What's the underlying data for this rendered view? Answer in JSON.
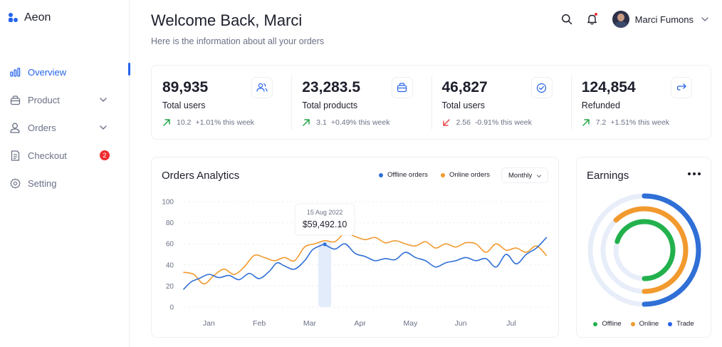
{
  "app": {
    "name": "Aeon"
  },
  "sidebar": {
    "items": [
      {
        "label": "Overview",
        "icon": "chart-bars-icon",
        "active": true
      },
      {
        "label": "Product",
        "icon": "box-icon",
        "chevron": true
      },
      {
        "label": "Orders",
        "icon": "user-icon",
        "chevron": true
      },
      {
        "label": "Checkout",
        "icon": "receipt-icon",
        "badge": "2"
      },
      {
        "label": "Setting",
        "icon": "gear-icon"
      }
    ]
  },
  "header": {
    "title": "Welcome Back, Marci",
    "subtitle": "Here is the information about all your orders",
    "user_name": "Marci Fumons"
  },
  "stats": [
    {
      "value": "89,935",
      "label": "Total users",
      "trend_num": "10.2",
      "trend_text": "+1.01% this week",
      "direction": "up",
      "icon": "users-icon"
    },
    {
      "value": "23,283.5",
      "label": "Total products",
      "trend_num": "3.1",
      "trend_text": "+0.49% this week",
      "direction": "up",
      "icon": "bag-icon"
    },
    {
      "value": "46,827",
      "label": "Total users",
      "trend_num": "2.56",
      "trend_text": "-0.91% this week",
      "direction": "down",
      "icon": "check-circle-icon"
    },
    {
      "value": "124,854",
      "label": "Refunded",
      "trend_num": "7.2",
      "trend_text": "+1.51% this week",
      "direction": "up",
      "icon": "refund-icon"
    }
  ],
  "colors": {
    "accent": "#2563eb",
    "offline": "#2f6fd6",
    "online": "#f29a2e",
    "trade_ring": "#2563eb",
    "up": "#22a447",
    "down": "#e5484d",
    "badge": "#ef2f2f"
  },
  "analytics": {
    "title": "Orders Analytics",
    "legend_offline": "Offline orders",
    "legend_online": "Online orders",
    "period": "Monthly",
    "tooltip_date": "15 Aug 2022",
    "tooltip_value": "$59,492.10"
  },
  "chart_data": {
    "type": "line",
    "ylim": [
      0,
      100
    ],
    "yticks": [
      "0",
      "20",
      "40",
      "60",
      "80",
      "100"
    ],
    "months": [
      "Jan",
      "Feb",
      "Mar",
      "Apr",
      "May",
      "Jun",
      "Jul"
    ],
    "month_x": [
      0.5,
      1.5,
      2.5,
      3.5,
      4.5,
      5.5,
      6.5
    ],
    "xlim": [
      0,
      7.25
    ],
    "highlight_x": 2.8,
    "series": [
      {
        "name": "Offline orders",
        "color": "#2f6fd6",
        "x": [
          0,
          0.15,
          0.3,
          0.5,
          0.7,
          0.9,
          1.1,
          1.3,
          1.5,
          1.7,
          1.85,
          2.0,
          2.2,
          2.4,
          2.55,
          2.7,
          2.8,
          3.0,
          3.2,
          3.4,
          3.6,
          3.8,
          4.0,
          4.2,
          4.4,
          4.6,
          4.8,
          5.0,
          5.2,
          5.4,
          5.6,
          5.8,
          6.0,
          6.2,
          6.4,
          6.6,
          6.8,
          7.0,
          7.2
        ],
        "y": [
          17,
          24,
          27,
          31,
          28,
          30,
          26,
          32,
          27,
          34,
          42,
          39,
          36,
          44,
          54,
          58,
          59,
          55,
          60,
          51,
          48,
          44,
          46,
          45,
          52,
          47,
          44,
          38,
          42,
          44,
          47,
          44,
          46,
          38,
          50,
          41,
          50,
          56,
          66
        ]
      },
      {
        "name": "Online orders",
        "color": "#f29a2e",
        "x": [
          0,
          0.2,
          0.4,
          0.6,
          0.8,
          1.0,
          1.2,
          1.4,
          1.6,
          1.8,
          2.0,
          2.2,
          2.4,
          2.6,
          2.8,
          3.0,
          3.2,
          3.4,
          3.6,
          3.8,
          4.0,
          4.2,
          4.4,
          4.6,
          4.8,
          5.0,
          5.2,
          5.4,
          5.6,
          5.8,
          6.0,
          6.2,
          6.4,
          6.6,
          6.8,
          7.0,
          7.2
        ],
        "y": [
          33,
          31,
          22,
          30,
          36,
          31,
          38,
          49,
          47,
          44,
          47,
          44,
          57,
          60,
          63,
          62,
          70,
          67,
          64,
          66,
          61,
          63,
          60,
          58,
          62,
          56,
          60,
          57,
          61,
          60,
          52,
          60,
          54,
          56,
          52,
          58,
          49
        ]
      }
    ]
  },
  "earnings": {
    "title": "Earnings",
    "legend": [
      {
        "label": "Offline",
        "color": "#22b14c"
      },
      {
        "label": "Online",
        "color": "#f29a2e"
      },
      {
        "label": "Trade",
        "color": "#2563eb"
      }
    ],
    "rings": [
      {
        "name": "Trade",
        "fraction": 0.5,
        "color": "#2f6fd6"
      },
      {
        "name": "Online",
        "fraction": 0.62,
        "color": "#f29a2e"
      },
      {
        "name": "Offline",
        "fraction": 0.7,
        "color": "#22b14c"
      }
    ]
  }
}
